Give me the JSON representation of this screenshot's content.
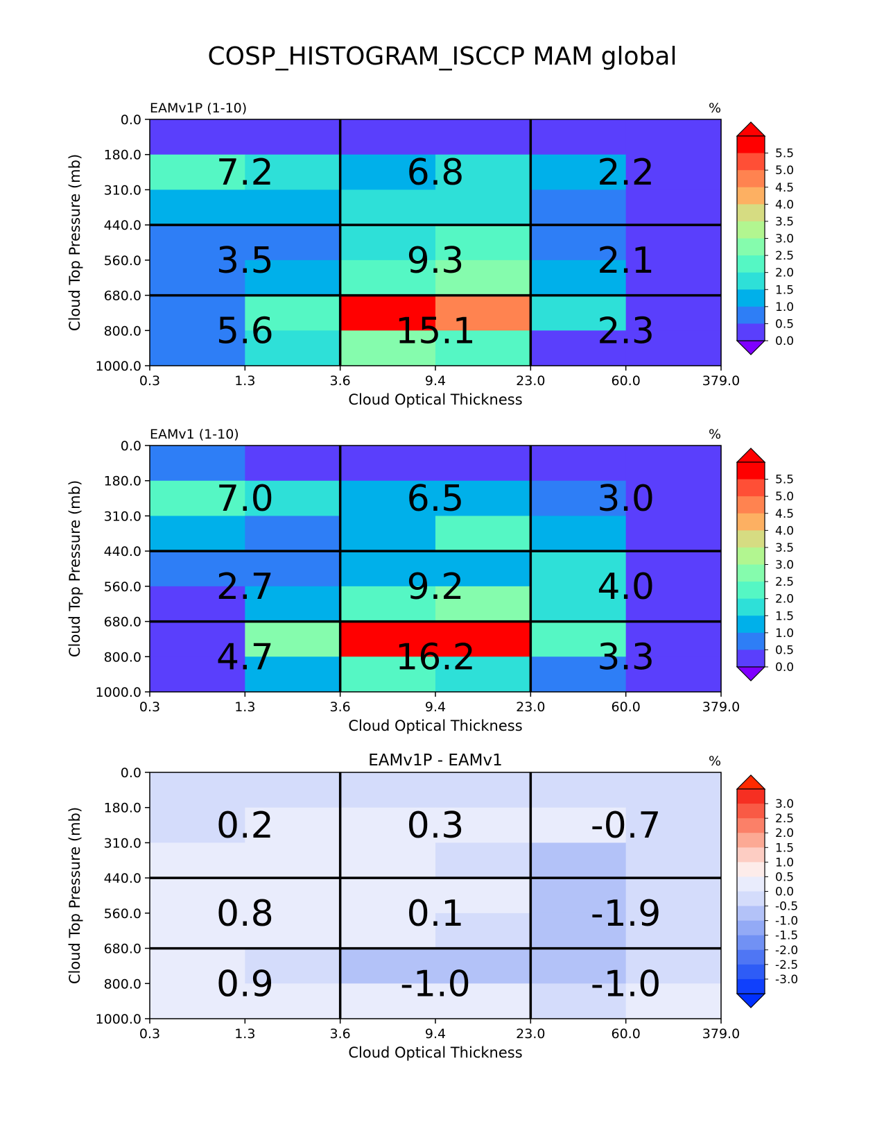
{
  "figure_title": "COSP_HISTOGRAM_ISCCP MAM global",
  "chart_data": [
    {
      "type": "heatmap",
      "left_title": "EAMv1P (1-10)",
      "center_title": "",
      "units": "%",
      "xlabel": "Cloud Optical Thickness",
      "ylabel": "Cloud Top Pressure (mb)",
      "x_ticks": [
        "0.3",
        "1.3",
        "3.6",
        "9.4",
        "23.0",
        "60.0",
        "379.0"
      ],
      "y_ticks": [
        "0.0",
        "180.0",
        "310.0",
        "440.0",
        "560.0",
        "680.0",
        "800.0",
        "1000.0"
      ],
      "colorbar_ticks": [
        "0.0",
        "0.5",
        "1.0",
        "1.5",
        "2.0",
        "2.5",
        "3.0",
        "3.5",
        "4.0",
        "4.5",
        "5.0",
        "5.5"
      ],
      "colorbar_colors": [
        "#5a3ffc",
        "#2e7ef6",
        "#00b0ea",
        "#2ee0d8",
        "#55f7c4",
        "#85fcad",
        "#b2f690",
        "#d6dc82",
        "#fdb062",
        "#ff8350",
        "#ff4f36",
        "#ff0000"
      ],
      "colorbar_under": "#7f00ff",
      "colorbar_over": "#ff0000",
      "values": [
        [
          0.4,
          0.4,
          0.4,
          0.4,
          0.4,
          0.4
        ],
        [
          2.1,
          1.9,
          1.3,
          1.8,
          1.4,
          0.3
        ],
        [
          1.4,
          1.4,
          1.7,
          1.7,
          0.7,
          0.3
        ],
        [
          0.8,
          0.8,
          1.8,
          2.2,
          0.7,
          0.3
        ],
        [
          0.8,
          1.4,
          2.2,
          2.6,
          1.4,
          0.3
        ],
        [
          0.8,
          2.2,
          5.8,
          4.6,
          1.8,
          0.3
        ],
        [
          0.8,
          1.8,
          2.6,
          2.2,
          0.4,
          0.3
        ]
      ],
      "cell_annotations": [
        [
          "7.2",
          "6.8",
          "2.2"
        ],
        [
          "3.5",
          "9.3",
          "2.1"
        ],
        [
          "5.6",
          "15.1",
          "2.3"
        ]
      ]
    },
    {
      "type": "heatmap",
      "left_title": "EAMv1 (1-10)",
      "center_title": "",
      "units": "%",
      "xlabel": "Cloud Optical Thickness",
      "ylabel": "Cloud Top Pressure (mb)",
      "x_ticks": [
        "0.3",
        "1.3",
        "3.6",
        "9.4",
        "23.0",
        "60.0",
        "379.0"
      ],
      "y_ticks": [
        "0.0",
        "180.0",
        "310.0",
        "440.0",
        "560.0",
        "680.0",
        "800.0",
        "1000.0"
      ],
      "colorbar_ticks": [
        "0.0",
        "0.5",
        "1.0",
        "1.5",
        "2.0",
        "2.5",
        "3.0",
        "3.5",
        "4.0",
        "4.5",
        "5.0",
        "5.5"
      ],
      "colorbar_colors": [
        "#5a3ffc",
        "#2e7ef6",
        "#00b0ea",
        "#2ee0d8",
        "#55f7c4",
        "#85fcad",
        "#b2f690",
        "#d6dc82",
        "#fdb062",
        "#ff8350",
        "#ff4f36",
        "#ff0000"
      ],
      "colorbar_under": "#7f00ff",
      "colorbar_over": "#ff0000",
      "values": [
        [
          0.8,
          0.4,
          0.4,
          0.4,
          0.4,
          0.4
        ],
        [
          2.1,
          1.8,
          1.4,
          1.4,
          0.8,
          0.3
        ],
        [
          1.4,
          0.8,
          1.4,
          2.2,
          1.4,
          0.3
        ],
        [
          0.8,
          0.8,
          1.4,
          1.4,
          1.8,
          0.3
        ],
        [
          0.4,
          1.4,
          2.2,
          2.6,
          1.8,
          0.3
        ],
        [
          0.3,
          2.6,
          5.8,
          5.8,
          2.2,
          0.3
        ],
        [
          0.3,
          1.4,
          2.2,
          1.8,
          0.8,
          0.3
        ]
      ],
      "cell_annotations": [
        [
          "7.0",
          "6.5",
          "3.0"
        ],
        [
          "2.7",
          "9.2",
          "4.0"
        ],
        [
          "4.7",
          "16.2",
          "3.3"
        ]
      ]
    },
    {
      "type": "heatmap",
      "left_title": "",
      "center_title": "EAMv1P - EAMv1",
      "units": "%",
      "xlabel": "Cloud Optical Thickness",
      "ylabel": "Cloud Top Pressure (mb)",
      "x_ticks": [
        "0.3",
        "1.3",
        "3.6",
        "9.4",
        "23.0",
        "60.0",
        "379.0"
      ],
      "y_ticks": [
        "0.0",
        "180.0",
        "310.0",
        "440.0",
        "560.0",
        "680.0",
        "800.0",
        "1000.0"
      ],
      "colorbar_ticks": [
        "-3.0",
        "-2.5",
        "-2.0",
        "-1.5",
        "-1.0",
        "-0.5",
        "0.0",
        "0.5",
        "1.0",
        "1.5",
        "2.0",
        "2.5",
        "3.0"
      ],
      "colorbar_colors": [
        "#1040fc",
        "#2e5cf6",
        "#4f76f4",
        "#7191f4",
        "#93aaf6",
        "#b3c2f8",
        "#d4dcfb",
        "#e9ecfc",
        "#fdecea",
        "#fdcdc3",
        "#fca994",
        "#fb8068",
        "#f95a45",
        "#f62f22"
      ],
      "colorbar_under": "#0030ff",
      "colorbar_over": "#ff2a00",
      "values": [
        [
          -0.1,
          -0.1,
          -0.1,
          -0.1,
          -0.1,
          -0.1
        ],
        [
          -0.1,
          0.1,
          0.1,
          0.1,
          0.1,
          -0.1
        ],
        [
          0.1,
          0.1,
          0.1,
          -0.1,
          -0.6,
          -0.1
        ],
        [
          0.1,
          0.1,
          0.1,
          0.1,
          -0.6,
          -0.1
        ],
        [
          0.1,
          0.1,
          0.1,
          -0.1,
          -0.6,
          -0.1
        ],
        [
          0.1,
          -0.1,
          -0.6,
          -0.6,
          -0.6,
          -0.1
        ],
        [
          0.1,
          0.1,
          0.1,
          0.1,
          -0.1,
          0.1
        ]
      ],
      "cell_annotations": [
        [
          "0.2",
          "0.3",
          "-0.7"
        ],
        [
          "0.8",
          "0.1",
          "-1.9"
        ],
        [
          "0.9",
          "-1.0",
          "-1.0"
        ]
      ]
    }
  ]
}
